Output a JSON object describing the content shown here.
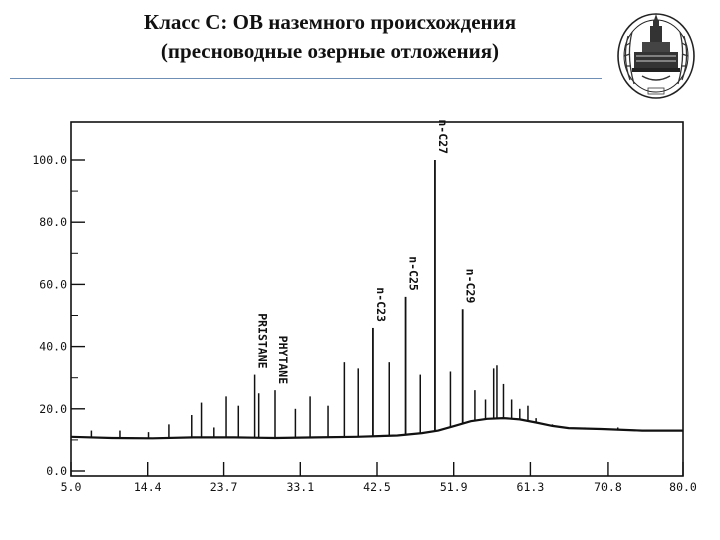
{
  "slide": {
    "title_line1": "Класс С: ОВ наземного происхождения",
    "title_line2": "(пресноводные озерные отложения)",
    "emblem_icon": "university-crest-icon"
  },
  "colors": {
    "ink": "#111111",
    "rule": "#6f8fb4",
    "background": "#ffffff"
  },
  "chart_data": {
    "type": "line",
    "title": "",
    "xlabel": "",
    "ylabel": "",
    "xlim": [
      5.0,
      80.0
    ],
    "ylim": [
      0.0,
      100.0
    ],
    "x_ticks": [
      "5.0",
      "14.4",
      "23.7",
      "33.1",
      "42.5",
      "51.9",
      "61.3",
      "70.8",
      "80.0"
    ],
    "y_ticks": [
      "0.0",
      "20.0",
      "40.0",
      "60.0",
      "80.0",
      "100.0"
    ],
    "grid": false,
    "baseline": [
      [
        5.0,
        11.0
      ],
      [
        10.0,
        10.6
      ],
      [
        15.0,
        10.5
      ],
      [
        20.0,
        10.8
      ],
      [
        25.0,
        10.8
      ],
      [
        30.0,
        10.6
      ],
      [
        35.0,
        10.8
      ],
      [
        40.0,
        11.0
      ],
      [
        45.0,
        11.4
      ],
      [
        48.0,
        12.2
      ],
      [
        50.0,
        13.0
      ],
      [
        52.0,
        14.5
      ],
      [
        54.0,
        16.0
      ],
      [
        56.0,
        16.8
      ],
      [
        58.0,
        17.0
      ],
      [
        60.0,
        16.6
      ],
      [
        62.0,
        15.6
      ],
      [
        64.0,
        14.5
      ],
      [
        66.0,
        13.8
      ],
      [
        70.0,
        13.5
      ],
      [
        75.0,
        13.0
      ],
      [
        80.0,
        13.0
      ]
    ],
    "peaks": [
      [
        7.5,
        13
      ],
      [
        11.0,
        13
      ],
      [
        14.5,
        12.5
      ],
      [
        17.0,
        15
      ],
      [
        19.8,
        18
      ],
      [
        21.0,
        22
      ],
      [
        22.5,
        14
      ],
      [
        24.0,
        24
      ],
      [
        25.5,
        21
      ],
      [
        27.5,
        31
      ],
      [
        28.0,
        25
      ],
      [
        30.0,
        26
      ],
      [
        32.5,
        20
      ],
      [
        34.3,
        24
      ],
      [
        36.5,
        21
      ],
      [
        38.5,
        35
      ],
      [
        40.2,
        33
      ],
      [
        42.0,
        46
      ],
      [
        44.0,
        35
      ],
      [
        46.0,
        56
      ],
      [
        47.8,
        31
      ],
      [
        49.6,
        100
      ],
      [
        51.5,
        32
      ],
      [
        53.0,
        52
      ],
      [
        54.5,
        26
      ],
      [
        55.8,
        23
      ],
      [
        56.8,
        33
      ],
      [
        57.2,
        34
      ],
      [
        58.0,
        28
      ],
      [
        59.0,
        23
      ],
      [
        60.0,
        20
      ],
      [
        61.0,
        21
      ],
      [
        62.0,
        17
      ],
      [
        64.0,
        15
      ],
      [
        68.0,
        14
      ],
      [
        72.0,
        14
      ]
    ],
    "annotations": [
      {
        "label": "PRISTANE",
        "x": 27.5
      },
      {
        "label": "PHYTANE",
        "x": 30.0
      },
      {
        "label": "n-C23",
        "x": 42.0
      },
      {
        "label": "n-C25",
        "x": 46.0
      },
      {
        "label": "n-C27",
        "x": 49.6
      },
      {
        "label": "n-C29",
        "x": 53.0
      }
    ]
  }
}
